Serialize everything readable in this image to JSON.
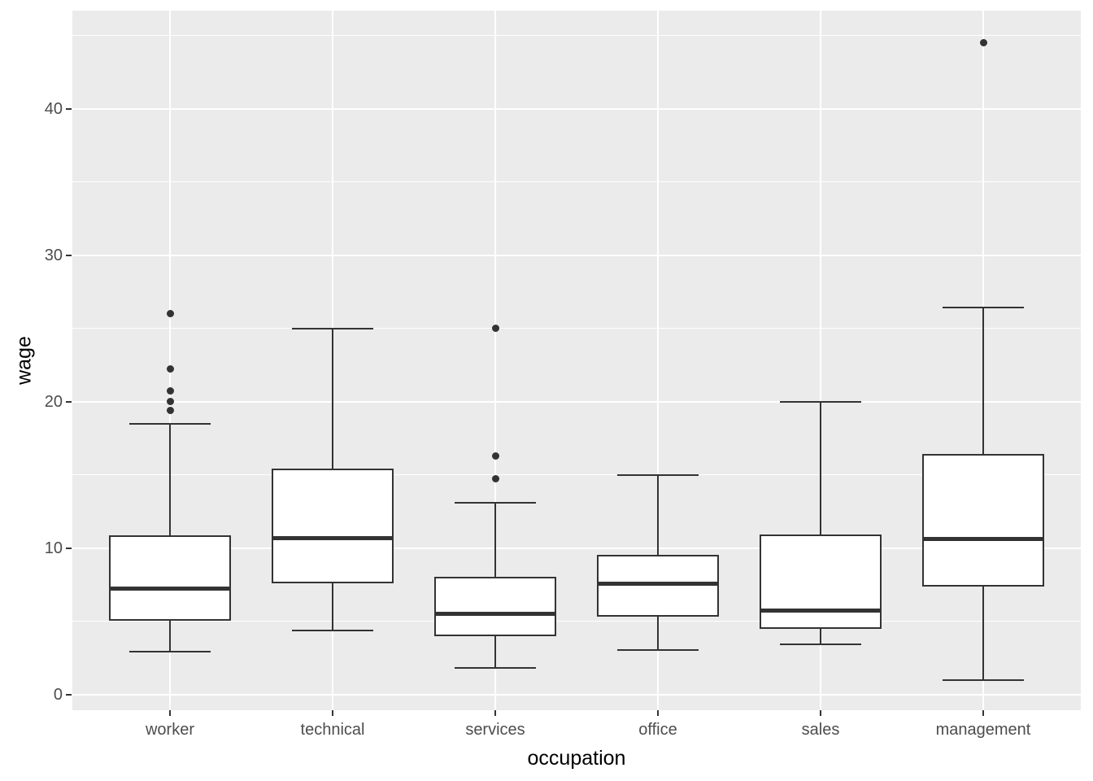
{
  "figure": {
    "background": "#FFFFFF",
    "panel_background": "#EBEBEB",
    "grid_color": "#FFFFFF",
    "box_border_color": "#333333",
    "box_fill": "#FFFFFF",
    "outlier_color": "#333333",
    "tick_mark_color": "#333333",
    "tick_label_color": "#4D4D4D",
    "axis_title_color": "#000000"
  },
  "chart_data": {
    "type": "boxplot",
    "title": "",
    "xlabel": "occupation",
    "ylabel": "wage",
    "categories": [
      "worker",
      "technical",
      "services",
      "office",
      "sales",
      "management"
    ],
    "y_ticks": [
      0,
      10,
      20,
      30,
      40
    ],
    "y_minor_ticks": [
      5,
      15,
      25,
      35,
      45
    ],
    "ylim": [
      -1.08,
      46.7
    ],
    "grid": true,
    "legend": "none",
    "box_width_frac": 0.75,
    "cap_width_frac": 0.5,
    "series": [
      {
        "category": "worker",
        "whisker_low": 2.9,
        "q1": 5.05,
        "median": 7.25,
        "q3": 10.85,
        "whisker_high": 18.5,
        "outliers": [
          19.4,
          20.0,
          20.7,
          22.2,
          26.0
        ]
      },
      {
        "category": "technical",
        "whisker_low": 4.35,
        "q1": 7.6,
        "median": 10.65,
        "q3": 15.4,
        "whisker_high": 25.0,
        "outliers": []
      },
      {
        "category": "services",
        "whisker_low": 1.8,
        "q1": 4.0,
        "median": 5.5,
        "q3": 8.05,
        "whisker_high": 13.1,
        "outliers": [
          14.7,
          16.3,
          25.0
        ]
      },
      {
        "category": "office",
        "whisker_low": 3.05,
        "q1": 5.3,
        "median": 7.55,
        "q3": 9.55,
        "whisker_high": 15.0,
        "outliers": []
      },
      {
        "category": "sales",
        "whisker_low": 3.4,
        "q1": 4.5,
        "median": 5.75,
        "q3": 10.9,
        "whisker_high": 20.0,
        "outliers": []
      },
      {
        "category": "management",
        "whisker_low": 1.0,
        "q1": 7.35,
        "median": 10.6,
        "q3": 16.4,
        "whisker_high": 26.4,
        "outliers": [
          44.5
        ]
      }
    ]
  }
}
